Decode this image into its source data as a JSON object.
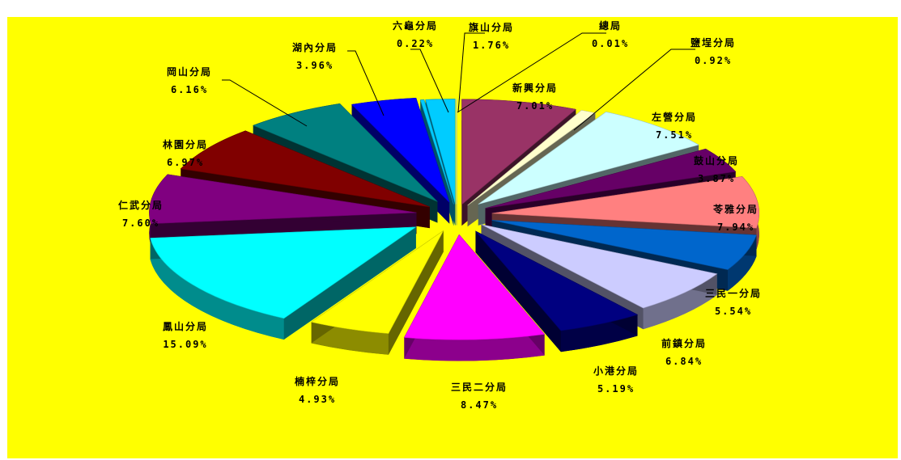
{
  "chart_data": {
    "type": "pie",
    "style": "3d-exploded",
    "background": "#ffff00",
    "slices": [
      {
        "name": "新興分局",
        "value": 7.01,
        "label": "7.01%",
        "color": "#993366"
      },
      {
        "name": "鹽埕分局",
        "value": 0.92,
        "label": "0.92%",
        "color": "#ffffcc"
      },
      {
        "name": "左營分局",
        "value": 7.51,
        "label": "7.51%",
        "color": "#ccffff"
      },
      {
        "name": "鼓山分局",
        "value": 3.87,
        "label": "3.87%",
        "color": "#660066"
      },
      {
        "name": "苓雅分局",
        "value": 7.94,
        "label": "7.94%",
        "color": "#ff8080"
      },
      {
        "name": "三民一分局",
        "value": 5.54,
        "label": "5.54%",
        "color": "#0066cc"
      },
      {
        "name": "前鎮分局",
        "value": 6.84,
        "label": "6.84%",
        "color": "#ccccff"
      },
      {
        "name": "小港分局",
        "value": 5.19,
        "label": "5.19%",
        "color": "#000080"
      },
      {
        "name": "三民二分局",
        "value": 8.47,
        "label": "8.47%",
        "color": "#ff00ff"
      },
      {
        "name": "楠梓分局",
        "value": 4.93,
        "label": "4.93%",
        "color": "#ffff00"
      },
      {
        "name": "鳳山分局",
        "value": 15.09,
        "label": "15.09%",
        "color": "#00ffff"
      },
      {
        "name": "仁武分局",
        "value": 7.6,
        "label": "7.60%",
        "color": "#800080"
      },
      {
        "name": "林園分局",
        "value": 6.97,
        "label": "6.97%",
        "color": "#800000"
      },
      {
        "name": "岡山分局",
        "value": 6.16,
        "label": "6.16%",
        "color": "#008080"
      },
      {
        "name": "湖內分局",
        "value": 3.96,
        "label": "3.96%",
        "color": "#0000ff"
      },
      {
        "name": "六龜分局",
        "value": 0.22,
        "label": "0.22%",
        "color": "#00ccff"
      },
      {
        "name": "旗山分局",
        "value": 1.76,
        "label": "1.76%",
        "color": "#00ccff"
      },
      {
        "name": "總局",
        "value": 0.01,
        "label": "0.01%",
        "color": "#ccffff"
      }
    ]
  }
}
